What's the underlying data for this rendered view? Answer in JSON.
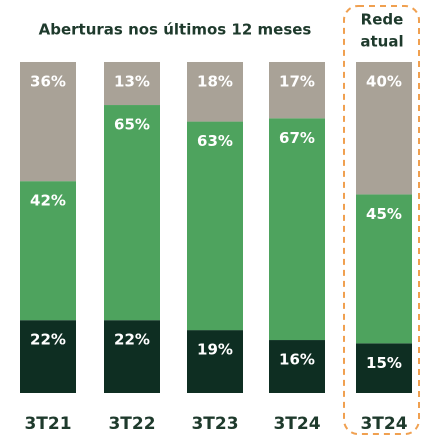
{
  "chart_data": {
    "type": "stacked_bar",
    "title": "Aberturas nos últimos 12 meses",
    "annotation": [
      "Rede",
      "atual"
    ],
    "categories": [
      "3T21",
      "3T22",
      "3T23",
      "3T24",
      "3T24"
    ],
    "ylim": [
      0,
      100
    ],
    "series": [
      {
        "color": "#0e2e22",
        "values": [
          22,
          22,
          19,
          16,
          15
        ],
        "value_labels": [
          "22%",
          "22%",
          "19%",
          "16%",
          "15%"
        ]
      },
      {
        "color": "#4ea35e",
        "values": [
          42,
          65,
          63,
          67,
          45
        ],
        "value_labels": [
          "42%",
          "65%",
          "63%",
          "67%",
          "45%"
        ]
      },
      {
        "color": "#a9a297",
        "values": [
          36,
          13,
          18,
          17,
          40
        ],
        "value_labels": [
          "36%",
          "13%",
          "18%",
          "17%",
          "40%"
        ]
      }
    ]
  }
}
